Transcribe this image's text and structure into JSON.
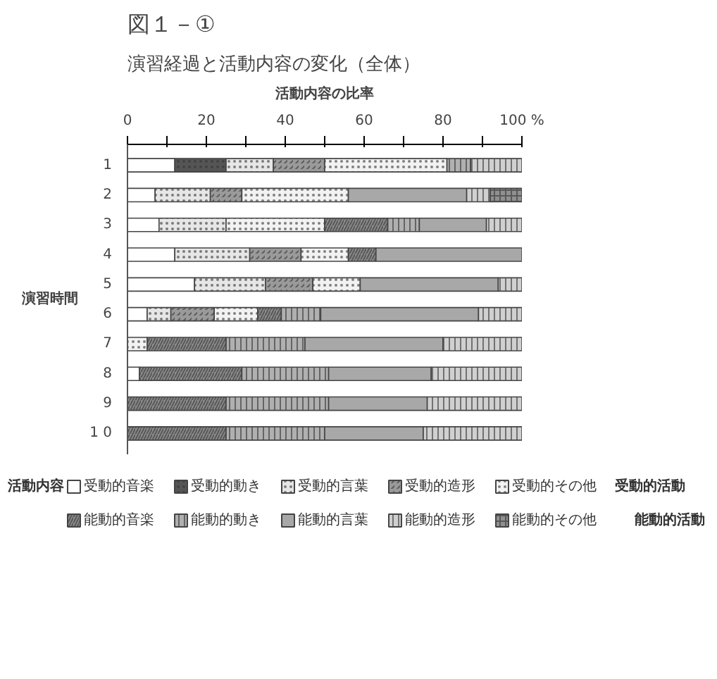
{
  "chart_data": {
    "type": "bar",
    "orientation": "horizontal",
    "stacked": true,
    "title": "図１－①",
    "subtitle": "演習経過と活動内容の変化（全体）",
    "ylabel": "演習時間",
    "xlabel": "活動内容の比率",
    "legend_title": "活動内容",
    "annotations": [
      "受動的活動",
      "能動的活動"
    ],
    "categories": [
      "1",
      "2",
      "3",
      "4",
      "5",
      "6",
      "7",
      "8",
      "9",
      "1 0"
    ],
    "xlim": [
      0,
      100
    ],
    "xticks": [
      0,
      {
        "value": 10,
        "label": null
      },
      20,
      {
        "value": 30,
        "label": null
      },
      40,
      {
        "value": 50,
        "label": null
      },
      60,
      {
        "value": 70,
        "label": null
      },
      80,
      {
        "value": 90,
        "label": null
      },
      {
        "value": 100,
        "label": "100 %"
      }
    ],
    "grid": false,
    "legend": "bottom",
    "series": [
      {
        "name": "受動的音楽",
        "color": "#ffffff",
        "values": [
          12,
          7,
          8,
          12,
          17,
          5,
          null,
          3,
          null,
          null
        ]
      },
      {
        "name": "受動的動き",
        "color": "#555555",
        "values": [
          13,
          null,
          null,
          null,
          null,
          null,
          null,
          null,
          null,
          null
        ]
      },
      {
        "name": "受動的言葉",
        "color": "#e6e6e6",
        "values": [
          12,
          14,
          17,
          19,
          18,
          6,
          null,
          null,
          null,
          null
        ]
      },
      {
        "name": "受動的造形",
        "color": "#9a9a9a",
        "values": [
          13,
          8,
          null,
          13,
          12,
          11,
          null,
          null,
          null,
          null
        ]
      },
      {
        "name": "受動的その他",
        "color": "#f2f2f2",
        "values": [
          31,
          27,
          25,
          12,
          12,
          11,
          5,
          null,
          null,
          null
        ]
      },
      {
        "name": "能動的音楽",
        "color": "#8c8c8c",
        "values": [
          null,
          null,
          16,
          7,
          null,
          6,
          20,
          26,
          25,
          25
        ]
      },
      {
        "name": "能動的動き",
        "color": "#b0b0b0",
        "values": [
          6,
          null,
          8,
          null,
          null,
          10,
          20,
          22,
          26,
          25
        ]
      },
      {
        "name": "能動的言葉",
        "color": "#a8a8a8",
        "values": [
          null,
          30,
          17,
          37,
          35,
          40,
          35,
          26,
          25,
          25
        ]
      },
      {
        "name": "能動的造形",
        "color": "#d0d0d0",
        "values": [
          13,
          6,
          9,
          null,
          6,
          11,
          20,
          23,
          24,
          25
        ]
      },
      {
        "name": "能動的その他",
        "color": "#909090",
        "values": [
          null,
          8,
          null,
          null,
          null,
          null,
          null,
          null,
          null,
          null
        ]
      }
    ]
  }
}
